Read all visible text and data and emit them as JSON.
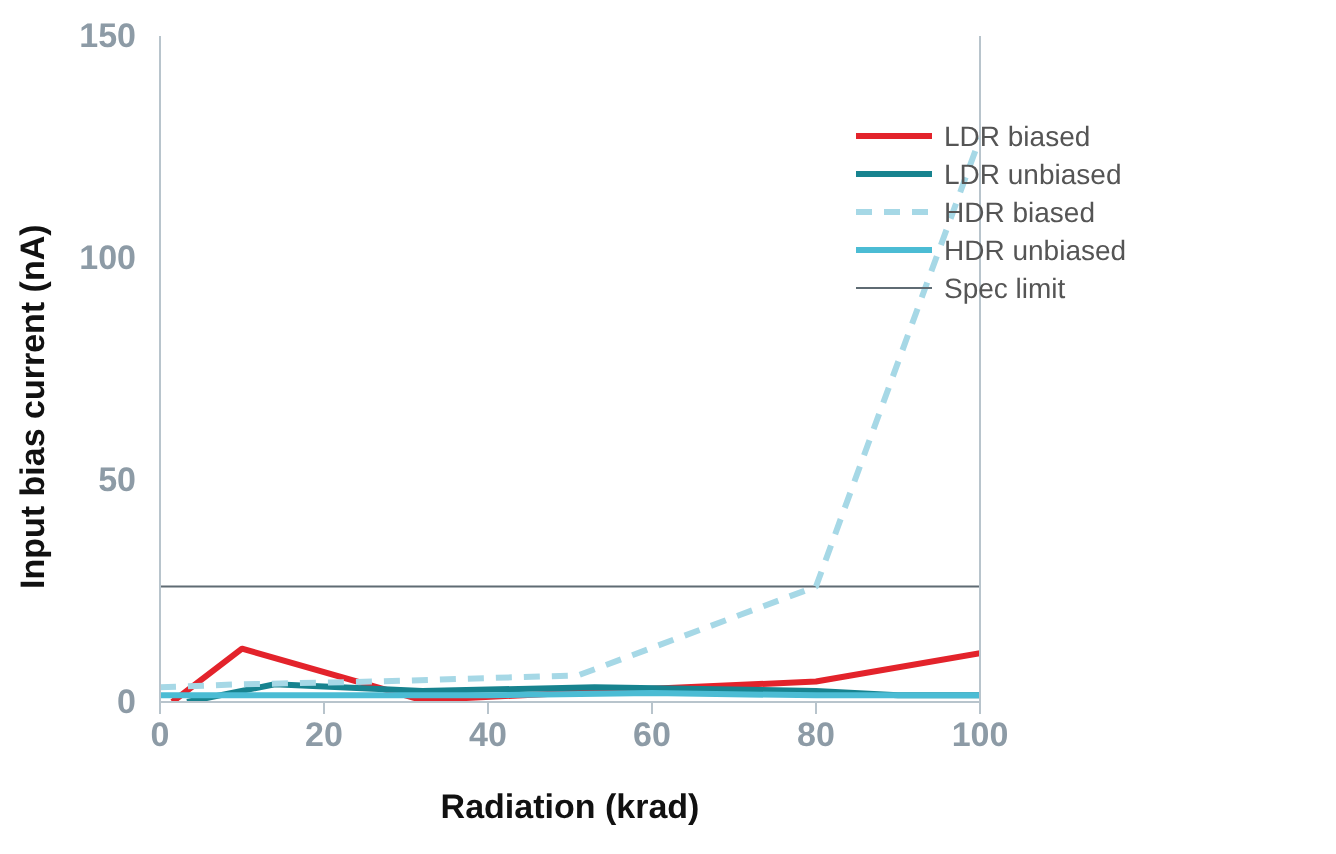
{
  "chart_data": {
    "type": "line",
    "xlabel": "Radiation (krad)",
    "ylabel": "Input bias current (nA)",
    "xlim": [
      0,
      100
    ],
    "xticks": [
      0,
      20,
      40,
      60,
      80,
      100
    ],
    "ylim": [
      0,
      150
    ],
    "yticks": [
      0,
      50,
      100,
      150
    ],
    "grid": false,
    "legend": "top right",
    "marker": "none",
    "series": [
      {
        "name": "LDR biased",
        "color": "#e3232b",
        "line_style": "solid",
        "x": [
          1.5,
          10,
          32,
          60,
          80,
          100
        ],
        "values": [
          0,
          12,
          0.4,
          3,
          4.6,
          11
        ]
      },
      {
        "name": "LDR unbiased",
        "color": "#17838f",
        "line_style": "solid",
        "x": [
          3.3,
          14,
          32,
          53,
          80,
          90,
          100
        ],
        "values": [
          0,
          4,
          2.5,
          3.3,
          2.5,
          1.5,
          1.5
        ]
      },
      {
        "name": "HDR biased",
        "color": "#a6d8e6",
        "line_style": "dashed",
        "x": [
          0,
          10,
          26,
          51,
          80,
          100
        ],
        "values": [
          3.3,
          4,
          4.6,
          6,
          26,
          127
        ]
      },
      {
        "name": "HDR unbiased",
        "color": "#4bbcd4",
        "line_style": "solid",
        "x": [
          0,
          20,
          40,
          60,
          80,
          100
        ],
        "values": [
          1.5,
          1.5,
          1.5,
          2,
          1.5,
          1.5
        ]
      }
    ],
    "ref_lines": [
      {
        "axis": "y",
        "value": 26,
        "label": "Spec limit",
        "color": "#5f6b73",
        "line_style": "solid"
      }
    ]
  }
}
